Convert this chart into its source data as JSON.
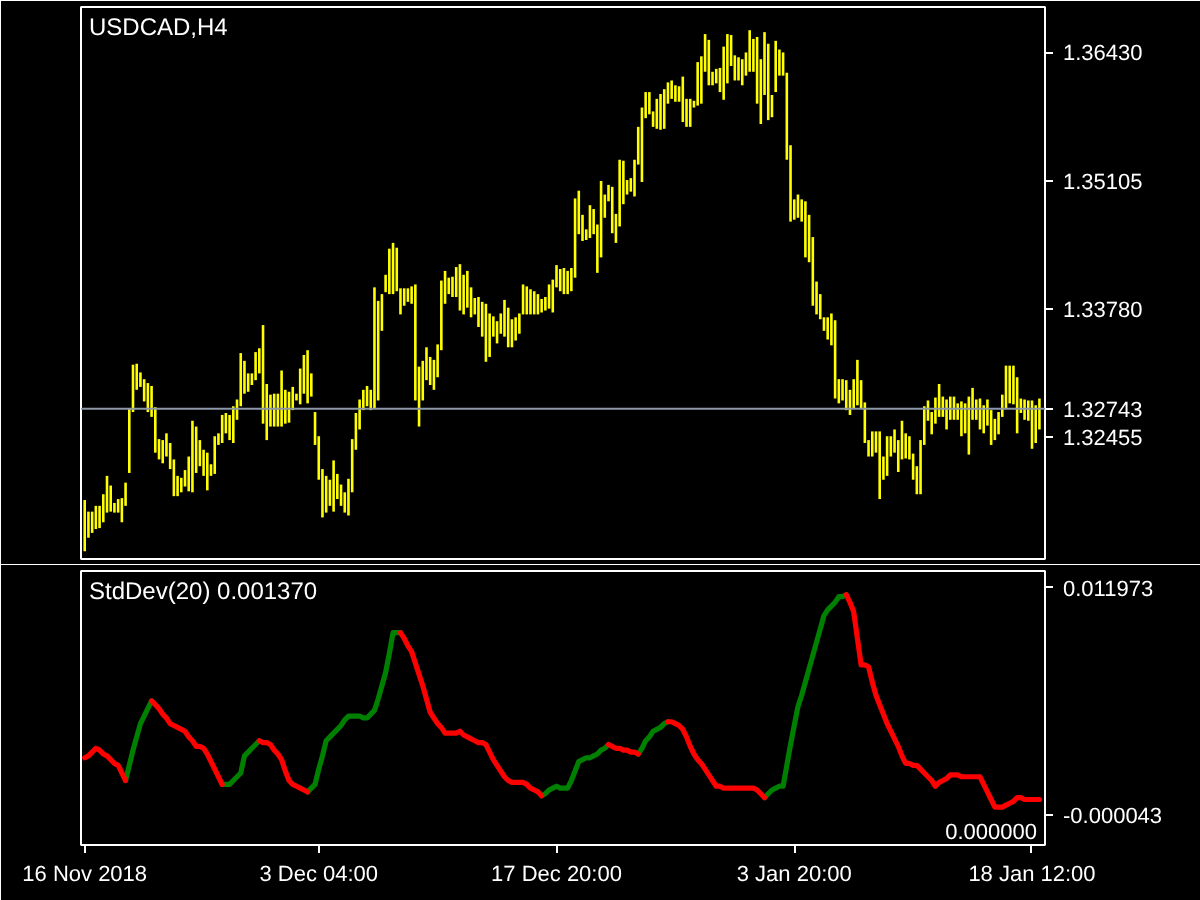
{
  "chart_data": [
    {
      "type": "bar",
      "title": "USDCAD,H4",
      "color": "#ffff00",
      "tick_labels": "y",
      "categories": [
        null,
        null,
        null,
        null,
        null,
        null,
        null,
        null,
        null,
        null,
        null,
        null,
        null,
        null,
        null,
        null,
        null,
        null,
        null,
        null,
        null,
        null,
        null,
        null,
        null,
        null,
        null,
        null,
        null,
        null,
        null,
        null,
        null,
        null,
        null,
        null,
        null,
        null,
        null,
        null,
        null,
        null,
        null,
        null,
        null,
        null,
        null,
        null,
        null,
        null,
        null,
        null,
        null,
        null,
        null,
        null,
        null,
        null,
        null,
        null,
        null,
        null,
        null,
        null,
        null,
        null,
        null,
        null,
        null,
        null,
        null,
        null,
        null,
        null,
        null,
        null,
        null,
        null,
        null,
        null,
        null,
        null,
        null,
        null,
        null,
        null,
        null,
        null,
        null,
        null,
        null,
        null,
        null,
        null,
        null,
        null,
        null,
        null,
        null,
        null,
        null,
        null,
        null,
        null,
        null,
        null,
        null,
        null,
        null,
        null,
        null,
        null,
        null,
        null,
        null,
        null,
        null,
        null,
        null,
        null,
        null,
        null,
        null,
        null,
        null,
        null,
        null,
        null,
        null,
        null,
        null,
        null,
        null,
        null,
        null,
        null,
        null,
        null,
        null,
        null,
        null,
        null,
        null,
        null,
        null,
        null,
        null,
        null,
        null,
        null,
        null,
        null,
        null,
        null,
        null,
        null,
        null,
        null,
        null,
        null,
        null,
        null,
        null,
        null,
        null,
        null,
        null,
        null,
        null,
        null,
        null,
        null,
        null,
        null,
        null,
        null,
        null,
        null,
        null,
        null,
        null,
        null,
        null,
        null,
        null,
        null,
        null,
        null,
        null,
        null,
        null,
        null,
        null,
        null,
        null,
        null,
        null,
        null,
        null,
        null,
        null,
        null,
        null,
        null,
        null,
        null,
        null,
        null,
        null,
        null,
        null,
        null,
        null,
        null,
        null,
        null,
        null,
        null,
        null,
        null,
        null,
        null,
        null,
        null,
        null,
        null,
        null,
        null,
        null,
        null,
        null,
        null,
        null,
        null,
        null,
        null,
        null,
        null,
        null,
        null,
        null,
        null,
        null,
        null,
        null,
        null,
        null,
        null,
        null,
        null,
        null,
        null,
        null,
        null,
        null,
        null,
        null,
        null
      ],
      "base": [
        1.3127,
        1.3141,
        1.3146,
        1.315,
        1.3151,
        1.3157,
        1.3167,
        1.3168,
        1.3167,
        1.3167,
        1.3157,
        1.3174,
        1.3208,
        1.3271,
        1.3294,
        1.3297,
        1.3282,
        1.3271,
        1.3266,
        1.3229,
        1.3222,
        1.3218,
        1.3225,
        1.3212,
        1.3184,
        1.3184,
        1.3188,
        1.3194,
        1.3189,
        1.3188,
        1.3208,
        1.3215,
        1.3205,
        1.319,
        1.3205,
        1.3207,
        1.3237,
        1.3239,
        1.3249,
        1.3242,
        1.3239,
        1.3263,
        1.3277,
        1.329,
        1.3292,
        1.3299,
        1.3304,
        1.3311,
        1.3259,
        1.3242,
        1.3256,
        1.3256,
        1.3256,
        1.3256,
        1.3259,
        1.326,
        1.3273,
        1.3283,
        1.3279,
        1.329,
        1.328,
        1.3287,
        1.3237,
        1.3201,
        1.3162,
        1.3167,
        1.3174,
        1.3168,
        1.3181,
        1.3174,
        1.3167,
        1.3164,
        1.3188,
        1.3232,
        1.3253,
        1.3273,
        1.3277,
        1.3273,
        1.3275,
        1.3283,
        1.3355,
        1.3395,
        1.3393,
        1.3393,
        1.3396,
        1.3372,
        1.3381,
        1.3385,
        1.3383,
        1.3283,
        1.3256,
        1.3283,
        1.3304,
        1.3299,
        1.3294,
        1.3307,
        1.3335,
        1.3383,
        1.3393,
        1.339,
        1.339,
        1.3376,
        1.3372,
        1.3379,
        1.3369,
        1.3372,
        1.3359,
        1.3349,
        1.3323,
        1.3328,
        1.3349,
        1.3342,
        1.3352,
        1.3349,
        1.3338,
        1.3338,
        1.3345,
        1.3352,
        1.3372,
        1.3372,
        1.3372,
        1.3372,
        1.3372,
        1.3374,
        1.3376,
        1.3378,
        1.3374,
        1.34,
        1.3396,
        1.3393,
        1.3393,
        1.3396,
        1.341,
        1.3455,
        1.3448,
        1.3449,
        1.3451,
        1.3455,
        1.3415,
        1.3431,
        1.3472,
        1.3489,
        1.3456,
        1.3446,
        1.3463,
        1.3486,
        1.3496,
        1.3499,
        1.3494,
        1.3527,
        1.3509,
        1.3575,
        1.3579,
        1.3566,
        1.3564,
        1.3563,
        1.3564,
        1.359,
        1.3595,
        1.3592,
        1.3592,
        1.3571,
        1.3566,
        1.3566,
        1.3586,
        1.3588,
        1.359,
        1.3623,
        1.3609,
        1.3609,
        1.3611,
        1.3602,
        1.3594,
        1.3611,
        1.3629,
        1.3614,
        1.3614,
        1.3609,
        1.3619,
        1.3623,
        1.3623,
        1.359,
        1.3569,
        1.3599,
        1.3573,
        1.3576,
        1.3602,
        1.3619,
        1.3619,
        1.3532,
        1.3468,
        1.347,
        1.3472,
        1.3468,
        1.3431,
        1.3426,
        1.3381,
        1.3372,
        1.3367,
        1.3355,
        1.3346,
        1.334,
        1.3285,
        1.328,
        1.3283,
        1.3273,
        1.3268,
        1.3275,
        1.3278,
        1.3275,
        1.3239,
        1.3225,
        1.3225,
        1.3229,
        1.3181,
        1.3201,
        1.3205,
        1.3225,
        1.3229,
        1.3209,
        1.3222,
        1.3223,
        1.3222,
        1.3201,
        1.3186,
        1.3186,
        1.3237,
        1.3262,
        1.3248,
        1.3259,
        1.3266,
        1.3266,
        1.3253,
        1.3263,
        1.3263,
        1.3263,
        1.3246,
        1.3249,
        1.3227,
        1.3263,
        1.3263,
        1.3253,
        1.3249,
        1.3257,
        1.3237,
        1.3242,
        1.3248,
        1.3266,
        1.3275,
        1.328,
        1.3279,
        1.3249,
        1.327,
        1.3263,
        1.3262,
        1.3233,
        1.3239,
        1.3253
      ],
      "values": [
        0.0053,
        0.0027,
        0.0022,
        0.0024,
        0.0023,
        0.0029,
        0.0038,
        0.0027,
        0.001,
        0.0014,
        0.0025,
        0.0024,
        0.0067,
        0.0049,
        0.0027,
        0.0015,
        0.0023,
        0.003,
        0.0032,
        0.0047,
        0.0021,
        0.0024,
        0.0024,
        0.0027,
        0.0038,
        0.0021,
        0.0015,
        0.0017,
        0.0036,
        0.0074,
        0.0048,
        0.0027,
        0.0027,
        0.0039,
        0.0012,
        0.0039,
        0.0012,
        0.0029,
        0.0021,
        0.0026,
        0.0038,
        0.0021,
        0.0055,
        0.0034,
        0.0019,
        0.0012,
        0.0029,
        0.0026,
        0.0102,
        0.0058,
        0.0033,
        0.0034,
        0.0034,
        0.0058,
        0.0035,
        0.0032,
        0.0024,
        0.0007,
        0.0037,
        0.004,
        0.0055,
        0.0024,
        0.0034,
        0.0045,
        0.005,
        0.0038,
        0.0027,
        0.0053,
        0.0026,
        0.0022,
        0.0021,
        0.0038,
        0.0055,
        0.0038,
        0.0031,
        0.0021,
        0.0021,
        0.0021,
        0.0125,
        0.0103,
        0.0038,
        0.0018,
        0.0047,
        0.0053,
        0.0045,
        0.0027,
        0.0018,
        0.0014,
        0.0018,
        0.012,
        0.0062,
        0.0041,
        0.0034,
        0.0029,
        0.0031,
        0.0034,
        0.0072,
        0.0034,
        0.0017,
        0.0021,
        0.0031,
        0.0048,
        0.0041,
        0.0038,
        0.0031,
        0.0017,
        0.0031,
        0.0036,
        0.006,
        0.0045,
        0.0021,
        0.0023,
        0.0021,
        0.0038,
        0.0041,
        0.0029,
        0.0024,
        0.0021,
        0.0031,
        0.0029,
        0.0026,
        0.0024,
        0.0021,
        0.0014,
        0.0014,
        0.0025,
        0.0034,
        0.0023,
        0.0023,
        0.0027,
        0.0024,
        0.0024,
        0.0082,
        0.0045,
        0.0027,
        0.0011,
        0.0034,
        0.0026,
        0.005,
        0.0079,
        0.0024,
        0.0017,
        0.0048,
        0.003,
        0.0069,
        0.0045,
        0.0015,
        0.0014,
        0.0038,
        0.0039,
        0.0077,
        0.0027,
        0.0023,
        0.0016,
        0.0031,
        0.0037,
        0.0041,
        0.0022,
        0.0019,
        0.0017,
        0.0016,
        0.0047,
        0.0029,
        0.0029,
        0.0007,
        0.0045,
        0.0049,
        0.0039,
        0.0047,
        0.0014,
        0.0015,
        0.0025,
        0.0055,
        0.0051,
        0.0032,
        0.0026,
        0.0024,
        0.0027,
        0.0024,
        0.0043,
        0.0034,
        0.0069,
        0.0067,
        0.0065,
        0.0079,
        0.0023,
        0.0053,
        0.0027,
        0.0024,
        0.009,
        0.0079,
        0.0021,
        0.0024,
        0.0023,
        0.0058,
        0.0049,
        0.0071,
        0.0034,
        0.0026,
        0.0014,
        0.0023,
        0.0033,
        0.0081,
        0.0025,
        0.0022,
        0.0031,
        0.0026,
        0.003,
        0.0047,
        0.0029,
        0.0042,
        0.0017,
        0.0026,
        0.0022,
        0.007,
        0.0024,
        0.0041,
        0.0021,
        0.0024,
        0.0033,
        0.004,
        0.0026,
        0.0024,
        0.0027,
        0.0029,
        0.0056,
        0.004,
        0.0021,
        0.0023,
        0.0027,
        0.0034,
        0.0021,
        0.0031,
        0.0024,
        0.0024,
        0.0017,
        0.0036,
        0.0031,
        0.006,
        0.0033,
        0.0021,
        0.0032,
        0.0029,
        0.0027,
        0.0036,
        0.0022,
        0.0023,
        0.0023,
        0.0044,
        0.0039,
        0.004,
        0.0058,
        0.0015,
        0.0021,
        0.0021,
        0.005,
        0.0039,
        0.0032
      ],
      "ylim": [
        1.3119,
        1.369
      ],
      "yticks": [
        {
          "value": 1.3643,
          "label": "1.36430"
        },
        1.35105,
        {
          "value": 1.3378,
          "label": "1.33780"
        },
        1.32455
      ],
      "ref_lines": [
        {
          "axis": "y",
          "value": 1.32743,
          "label": "1.32743",
          "color": "#8c99a6"
        }
      ]
    },
    {
      "type": "line",
      "title": "StdDev(20) 0.001370",
      "annotations": [
        "0.000000"
      ],
      "categories": [
        "16 Nov 2018",
        null,
        null,
        null,
        null,
        null,
        null,
        null,
        null,
        null,
        null,
        null,
        null,
        null,
        null,
        null,
        null,
        null,
        null,
        null,
        null,
        null,
        null,
        null,
        null,
        null,
        null,
        null,
        null,
        null,
        null,
        null,
        null,
        null,
        null,
        null,
        null,
        null,
        null,
        null,
        null,
        null,
        null,
        null,
        null,
        null,
        null,
        null,
        null,
        null,
        null,
        null,
        null,
        null,
        null,
        null,
        null,
        null,
        null,
        null,
        null,
        null,
        null,
        "3 Dec 04:00",
        null,
        null,
        null,
        null,
        null,
        null,
        null,
        null,
        null,
        null,
        null,
        null,
        null,
        null,
        null,
        null,
        null,
        null,
        null,
        null,
        null,
        null,
        null,
        null,
        null,
        null,
        null,
        null,
        null,
        null,
        null,
        null,
        null,
        null,
        null,
        null,
        null,
        null,
        null,
        null,
        null,
        null,
        null,
        null,
        null,
        null,
        null,
        null,
        null,
        null,
        null,
        null,
        null,
        null,
        null,
        null,
        null,
        null,
        null,
        null,
        null,
        null,
        null,
        "17 Dec 20:00",
        null,
        null,
        null,
        null,
        null,
        null,
        null,
        null,
        null,
        null,
        null,
        null,
        null,
        null,
        null,
        null,
        null,
        null,
        null,
        null,
        null,
        null,
        null,
        null,
        null,
        null,
        null,
        null,
        null,
        null,
        null,
        null,
        null,
        null,
        null,
        null,
        null,
        null,
        null,
        null,
        null,
        null,
        null,
        null,
        null,
        null,
        null,
        null,
        null,
        null,
        null,
        null,
        null,
        null,
        null,
        null,
        null,
        null,
        null,
        null,
        null,
        null,
        null,
        "3 Jan 20:00",
        null,
        null,
        null,
        null,
        null,
        null,
        null,
        null,
        null,
        null,
        null,
        null,
        null,
        null,
        null,
        null,
        null,
        null,
        null,
        null,
        null,
        null,
        null,
        null,
        null,
        null,
        null,
        null,
        null,
        null,
        null,
        null,
        null,
        null,
        null,
        null,
        null,
        null,
        null,
        null,
        null,
        null,
        null,
        null,
        null,
        null,
        null,
        null,
        null,
        null,
        null,
        null,
        null,
        null,
        null,
        null,
        null,
        null,
        null,
        null,
        null,
        null,
        null,
        "18 Jan 12:00",
        null,
        null
      ],
      "ylim": [
        -0.0016,
        0.01285
      ],
      "yticks": [
        {
          "value": -4.3e-05,
          "label": "-0.000043"
        },
        0.011973
      ],
      "series": [
        {
          "color": "#008000",
          "values": [
            null,
            null,
            null,
            null,
            null,
            null,
            null,
            null,
            null,
            null,
            null,
            0.0018,
            0.0026,
            0.0034,
            0.0041,
            0.0048,
            0.0052,
            0.0056,
            0.006,
            null,
            null,
            null,
            null,
            null,
            null,
            null,
            null,
            null,
            null,
            null,
            null,
            null,
            null,
            null,
            null,
            null,
            null,
            0.0016,
            0.0016,
            0.0016,
            0.0018,
            0.002,
            0.0022,
            0.0031,
            0.0033,
            0.0035,
            0.0037,
            0.0039,
            null,
            null,
            null,
            null,
            null,
            null,
            null,
            null,
            null,
            null,
            null,
            null,
            0.0012,
            0.0014,
            0.0016,
            0.0024,
            0.0031,
            0.0039,
            0.0041,
            0.0043,
            0.0045,
            0.0047,
            0.005,
            0.0052,
            0.0052,
            0.0052,
            0.0052,
            0.0051,
            0.0051,
            0.0053,
            0.0055,
            0.0061,
            0.0068,
            0.0075,
            0.0085,
            0.0096,
            0.0096,
            0.0096,
            null,
            null,
            null,
            null,
            null,
            null,
            null,
            null,
            null,
            null,
            null,
            null,
            null,
            null,
            null,
            null,
            null,
            null,
            null,
            null,
            null,
            null,
            null,
            null,
            null,
            null,
            null,
            null,
            null,
            null,
            null,
            null,
            null,
            null,
            null,
            null,
            null,
            0.001,
            0.0011,
            0.0013,
            0.0014,
            0.0015,
            0.0014,
            0.0014,
            0.0014,
            0.0018,
            0.0023,
            0.0028,
            0.0029,
            0.003,
            0.003,
            0.0031,
            0.0032,
            0.0034,
            0.0035,
            0.0037,
            null,
            null,
            null,
            null,
            null,
            null,
            null,
            0.0032,
            0.0035,
            0.0039,
            0.0041,
            0.0044,
            0.0045,
            0.0046,
            0.0048,
            0.0049,
            null,
            null,
            null,
            null,
            null,
            null,
            null,
            null,
            null,
            null,
            null,
            null,
            null,
            null,
            null,
            null,
            null,
            null,
            null,
            null,
            null,
            null,
            null,
            null,
            null,
            0.0009,
            0.0011,
            0.0013,
            0.0014,
            0.0015,
            0.0015,
            0.0026,
            0.0037,
            0.0047,
            0.0057,
            0.0063,
            0.007,
            0.0077,
            0.0084,
            0.0091,
            0.0098,
            0.0105,
            0.0108,
            0.011,
            0.0112,
            0.0115,
            0.0115,
            0.0116,
            null,
            null,
            null,
            null,
            null,
            null,
            null,
            null,
            null,
            null,
            null,
            null,
            null,
            null,
            null,
            null,
            null,
            null,
            null,
            null,
            null,
            null,
            null,
            null,
            null,
            null,
            null,
            null,
            null,
            null,
            null,
            null,
            null,
            null,
            null,
            null,
            null,
            null,
            null,
            null,
            null,
            null,
            null,
            null,
            null,
            null,
            null,
            null,
            null,
            null,
            null,
            null
          ]
        },
        {
          "color": "#ff0000",
          "values": [
            0.003,
            0.0031,
            0.0033,
            0.0035,
            0.0034,
            0.0032,
            0.0031,
            0.0029,
            0.0027,
            0.0026,
            0.0022,
            0.0018,
            null,
            null,
            null,
            null,
            null,
            null,
            0.006,
            0.0058,
            0.0056,
            0.0053,
            0.0051,
            0.0048,
            0.0047,
            0.0046,
            0.0045,
            0.0044,
            0.0041,
            0.0039,
            0.0036,
            0.0036,
            0.0035,
            0.0032,
            0.0028,
            0.0024,
            0.002,
            0.0016,
            null,
            null,
            null,
            null,
            null,
            null,
            null,
            null,
            null,
            0.0039,
            0.0038,
            0.0038,
            0.0037,
            0.0034,
            0.0032,
            0.0029,
            0.0023,
            0.0018,
            0.0016,
            0.0015,
            0.0014,
            0.0013,
            0.0012,
            null,
            null,
            null,
            null,
            null,
            null,
            null,
            null,
            null,
            null,
            null,
            null,
            null,
            null,
            null,
            null,
            null,
            null,
            null,
            null,
            null,
            null,
            null,
            null,
            0.0096,
            0.0093,
            0.0089,
            0.0086,
            0.008,
            0.0074,
            0.0068,
            0.0061,
            0.0054,
            0.0051,
            0.0048,
            0.0046,
            0.0043,
            0.0043,
            0.0043,
            0.0043,
            0.0044,
            0.0042,
            0.0041,
            0.004,
            0.0039,
            0.0038,
            0.0038,
            0.0037,
            0.0033,
            0.0029,
            0.0026,
            0.0023,
            0.002,
            0.0018,
            0.0017,
            0.0017,
            0.0017,
            0.0017,
            0.0016,
            0.0014,
            0.0013,
            0.0012,
            0.001,
            null,
            null,
            null,
            null,
            null,
            null,
            null,
            null,
            null,
            null,
            null,
            null,
            null,
            null,
            null,
            null,
            null,
            0.0037,
            0.0036,
            0.0035,
            0.0035,
            0.0034,
            0.0034,
            0.0033,
            0.0033,
            0.0032,
            null,
            null,
            null,
            null,
            null,
            null,
            null,
            0.0049,
            0.0049,
            0.0048,
            0.0047,
            0.0045,
            0.0041,
            0.0036,
            0.0032,
            0.0029,
            0.0027,
            0.0024,
            0.0021,
            0.0018,
            0.0015,
            0.0015,
            0.0014,
            0.0014,
            0.0014,
            0.0014,
            0.0014,
            0.0014,
            0.0014,
            0.0014,
            0.0014,
            0.0013,
            0.0011,
            0.0009,
            null,
            null,
            null,
            null,
            null,
            null,
            null,
            null,
            null,
            null,
            null,
            null,
            null,
            null,
            null,
            null,
            null,
            null,
            null,
            null,
            null,
            0.0116,
            0.0112,
            0.0107,
            0.0093,
            0.0079,
            0.0079,
            0.0078,
            0.007,
            0.0063,
            0.0058,
            0.0053,
            0.0048,
            0.0044,
            0.004,
            0.0036,
            0.0031,
            0.0027,
            0.0027,
            0.0026,
            0.0026,
            0.0024,
            0.0022,
            0.002,
            0.0018,
            0.0015,
            0.0017,
            0.0018,
            0.0019,
            0.0021,
            0.0021,
            0.0021,
            0.002,
            0.002,
            0.002,
            0.002,
            0.002,
            0.002,
            0.0016,
            0.0012,
            0.0008,
            0.0004,
            0.0004,
            0.0004,
            0.0005,
            0.0006,
            0.0007,
            0.0009,
            0.0009,
            0.0008,
            0.0008,
            0.0008,
            0.0008,
            0.0008
          ]
        }
      ]
    }
  ]
}
